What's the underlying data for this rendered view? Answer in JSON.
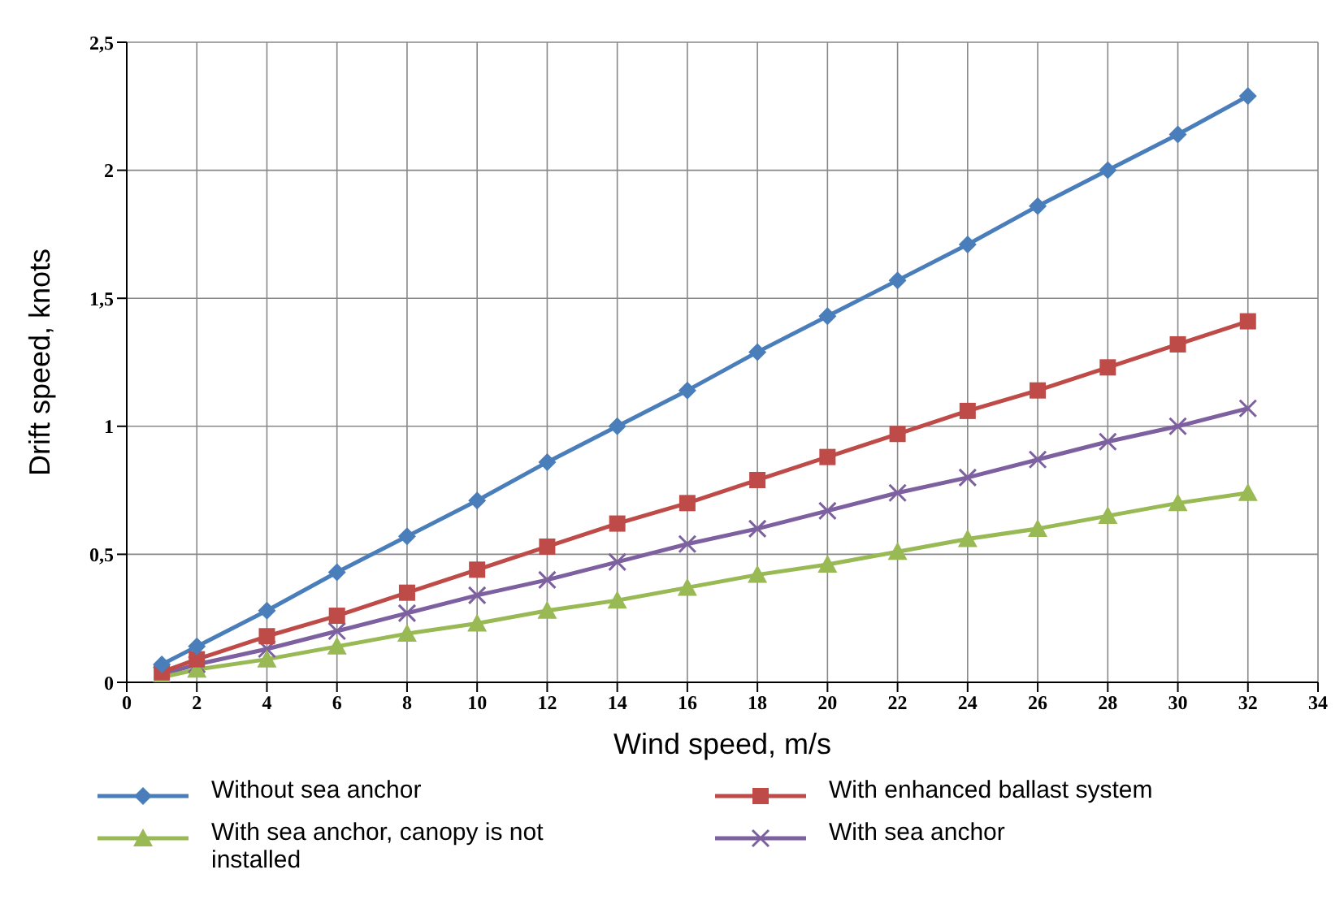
{
  "chart_data": {
    "type": "line",
    "xlabel": "Wind speed, m/s",
    "ylabel": "Drift speed, knots",
    "x": [
      1,
      2,
      4,
      6,
      8,
      10,
      12,
      14,
      16,
      18,
      20,
      22,
      24,
      26,
      28,
      30,
      32
    ],
    "series": [
      {
        "name": "Without sea anchor",
        "color": "#4a7ebb",
        "marker": "diamond",
        "values": [
          0.07,
          0.14,
          0.28,
          0.43,
          0.57,
          0.71,
          0.86,
          1.0,
          1.14,
          1.29,
          1.43,
          1.57,
          1.71,
          1.86,
          2.0,
          2.14,
          2.29
        ]
      },
      {
        "name": "With enhanced ballast system",
        "color": "#be4b48",
        "marker": "square",
        "values": [
          0.04,
          0.09,
          0.18,
          0.26,
          0.35,
          0.44,
          0.53,
          0.62,
          0.7,
          0.79,
          0.88,
          0.97,
          1.06,
          1.14,
          1.23,
          1.32,
          1.41
        ]
      },
      {
        "name": "With sea anchor, canopy is not installed",
        "color": "#98b954",
        "marker": "triangle",
        "values": [
          0.02,
          0.05,
          0.09,
          0.14,
          0.19,
          0.23,
          0.28,
          0.32,
          0.37,
          0.42,
          0.46,
          0.51,
          0.56,
          0.6,
          0.65,
          0.7,
          0.74
        ]
      },
      {
        "name": "With sea anchor",
        "color": "#7d60a0",
        "marker": "cross",
        "values": [
          0.03,
          0.07,
          0.13,
          0.2,
          0.27,
          0.34,
          0.4,
          0.47,
          0.54,
          0.6,
          0.67,
          0.74,
          0.8,
          0.87,
          0.94,
          1.0,
          1.07
        ]
      }
    ],
    "xlim": [
      0,
      34
    ],
    "xticks": [
      0,
      2,
      4,
      6,
      8,
      10,
      12,
      14,
      16,
      18,
      20,
      22,
      24,
      26,
      28,
      30,
      32,
      34
    ],
    "ylim": [
      0,
      2.5
    ],
    "yticks": [
      0,
      {
        "value": 0.5,
        "label": "0,5"
      },
      1,
      {
        "value": 1.5,
        "label": "1,5"
      },
      2,
      {
        "value": 2.5,
        "label": "2,5"
      }
    ],
    "grid": true,
    "legend": "bottom",
    "line_style": "solid"
  }
}
